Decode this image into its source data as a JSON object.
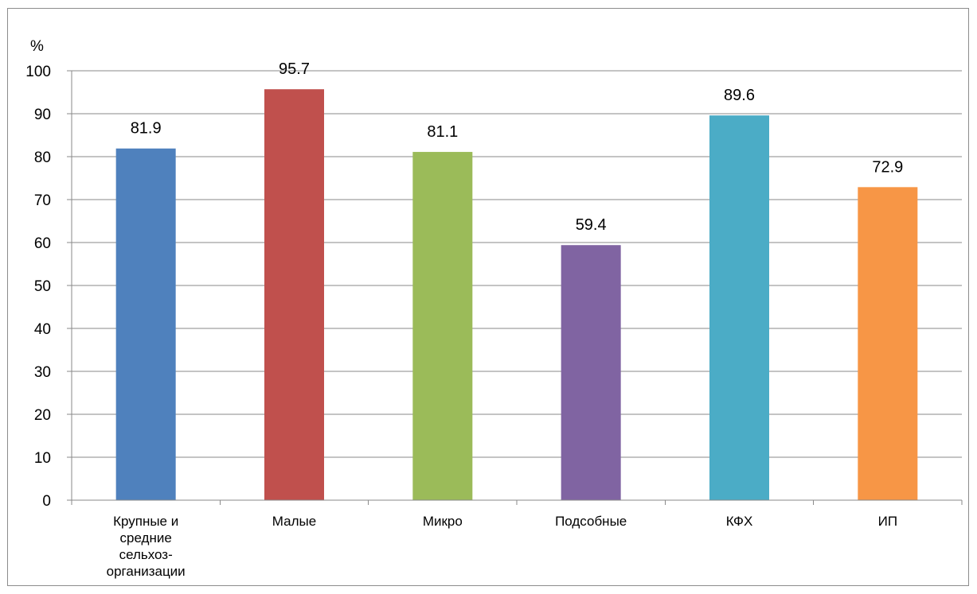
{
  "chart_data": {
    "type": "bar",
    "title": "",
    "xlabel": "",
    "ylabel": "%",
    "ylim": [
      0,
      100
    ],
    "yticks": [
      "0",
      "10",
      "20",
      "30",
      "40",
      "50",
      "60",
      "70",
      "80",
      "90",
      "100"
    ],
    "grid": true,
    "legend": "none",
    "categories": [
      "Крупные и средние сельхоз- организации",
      "Малые",
      "Микро",
      "Подсобные",
      "КФХ",
      "ИП"
    ],
    "category_lines": [
      [
        "Крупные и",
        "средние",
        "сельхоз-",
        "организации"
      ],
      [
        "Малые"
      ],
      [
        "Микро"
      ],
      [
        "Подсобные"
      ],
      [
        "КФХ"
      ],
      [
        "ИП"
      ]
    ],
    "values": [
      81.9,
      95.7,
      81.1,
      59.4,
      89.6,
      72.9
    ],
    "value_labels": [
      "81.9",
      "95.7",
      "81.1",
      "59.4",
      "89.6",
      "72.9"
    ],
    "colors": [
      "#4f81bd",
      "#c0504d",
      "#9bbb59",
      "#8064a2",
      "#4bacc6",
      "#f79646"
    ]
  }
}
